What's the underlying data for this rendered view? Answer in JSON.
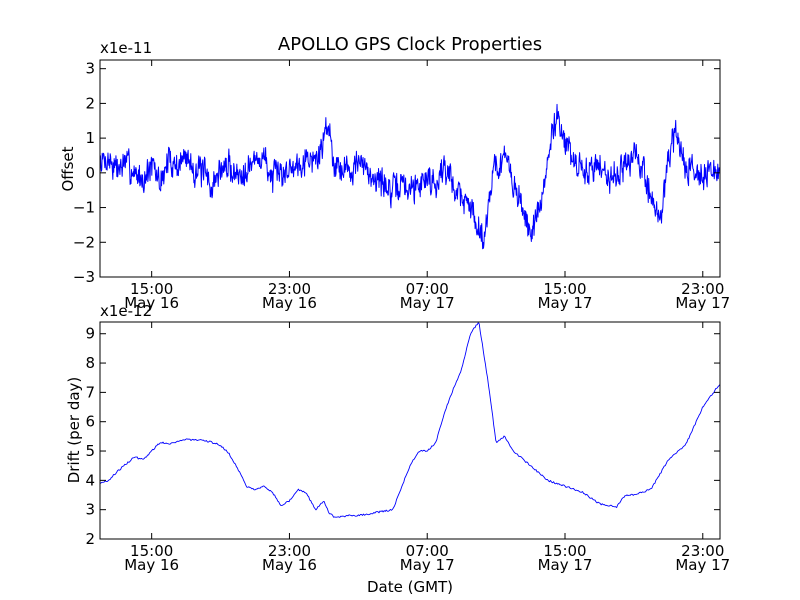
{
  "chart_data": [
    {
      "type": "line",
      "title": "APOLLO GPS Clock Properties",
      "xlabel": "",
      "ylabel": "Offset",
      "scale_label": "x1e-11",
      "xlim": [
        0,
        36
      ],
      "ylim": [
        -3,
        3.25
      ],
      "yticks": [
        -3,
        -2,
        -1,
        0,
        1,
        2,
        3
      ],
      "yticklabels": [
        "−3",
        "−2",
        "−1",
        "0",
        "1",
        "2",
        "3"
      ],
      "xticks": [
        3,
        11,
        19,
        27,
        35
      ],
      "xticklabels": [
        [
          "15:00",
          "May 16"
        ],
        [
          "23:00",
          "May 16"
        ],
        [
          "07:00",
          "May 17"
        ],
        [
          "15:00",
          "May 17"
        ],
        [
          "23:00",
          "May 17"
        ]
      ],
      "grid": false,
      "series": [
        {
          "color": "#0000ff",
          "noisy": true,
          "x": [
            0,
            0.5,
            1,
            1.5,
            2,
            2.5,
            3,
            3.5,
            4,
            4.5,
            5,
            5.5,
            6,
            6.5,
            7,
            7.5,
            8,
            8.5,
            9,
            9.5,
            10,
            10.5,
            11,
            11.5,
            12,
            12.5,
            13,
            13.2,
            13.4,
            13.6,
            14,
            14.5,
            15,
            15.5,
            16,
            16.5,
            17,
            17.5,
            18,
            18.5,
            19,
            19.5,
            20,
            20.5,
            21,
            21.5,
            22,
            22.3,
            22.5,
            22.8,
            23,
            23.5,
            24,
            24.5,
            25,
            25.5,
            26,
            26.5,
            27,
            27.5,
            28,
            28.5,
            29,
            29.5,
            30,
            30.5,
            31,
            31.5,
            32,
            32.5,
            33,
            33.5,
            34,
            34.5,
            35,
            35.5,
            36
          ],
          "y": [
            0.3,
            0.4,
            0.1,
            0.3,
            0.0,
            -0.2,
            0.2,
            -0.3,
            0.4,
            0.2,
            0.5,
            0.1,
            0.0,
            -0.4,
            0.1,
            0.2,
            -0.1,
            0.2,
            0.3,
            0.5,
            -0.2,
            0.0,
            0.1,
            0.3,
            0.5,
            0.3,
            0.9,
            1.6,
            0.9,
            0.3,
            0.2,
            0.1,
            0.3,
            0.0,
            -0.1,
            -0.3,
            -0.6,
            -0.3,
            -0.5,
            -0.3,
            -0.1,
            -0.3,
            0.2,
            -0.3,
            -0.7,
            -1.0,
            -1.5,
            -2.0,
            -1.0,
            0.0,
            0.2,
            0.4,
            -0.3,
            -1.0,
            -1.7,
            -1.2,
            0.3,
            1.8,
            0.9,
            0.3,
            0.0,
            0.1,
            0.3,
            -0.1,
            0.0,
            0.2,
            0.5,
            0.1,
            -0.6,
            -1.5,
            0.5,
            1.1,
            0.2,
            0.1,
            0.0,
            -0.1,
            0.2
          ]
        }
      ]
    },
    {
      "type": "line",
      "title": "",
      "xlabel": "Date (GMT)",
      "ylabel": "Drift (per day)",
      "scale_label": "x1e-12",
      "xlim": [
        0,
        36
      ],
      "ylim": [
        2,
        9.4
      ],
      "yticks": [
        2,
        3,
        4,
        5,
        6,
        7,
        8,
        9
      ],
      "yticklabels": [
        "2",
        "3",
        "4",
        "5",
        "6",
        "7",
        "8",
        "9"
      ],
      "xticks": [
        3,
        11,
        19,
        27,
        35
      ],
      "xticklabels": [
        [
          "15:00",
          "May 16"
        ],
        [
          "23:00",
          "May 16"
        ],
        [
          "07:00",
          "May 17"
        ],
        [
          "15:00",
          "May 17"
        ],
        [
          "23:00",
          "May 17"
        ]
      ],
      "grid": false,
      "series": [
        {
          "color": "#0000ff",
          "noisy": false,
          "x": [
            0,
            0.5,
            1,
            2,
            2.5,
            3,
            3.5,
            4,
            5,
            6,
            6.5,
            7,
            7.5,
            8,
            8.5,
            9,
            9.5,
            10,
            10.5,
            11,
            11.5,
            12,
            12.5,
            13,
            13.3,
            13.6,
            14,
            14.5,
            15,
            16,
            17,
            18,
            18.5,
            19,
            19.5,
            20,
            20.5,
            21,
            21.3,
            21.5,
            22,
            22.5,
            23,
            23.5,
            24,
            25,
            26,
            27,
            28,
            29,
            30,
            30.5,
            31,
            32,
            33,
            34,
            35,
            36
          ],
          "y": [
            3.9,
            4.0,
            4.3,
            4.8,
            4.7,
            5.0,
            5.3,
            5.25,
            5.4,
            5.35,
            5.3,
            5.2,
            4.9,
            4.4,
            3.8,
            3.7,
            3.8,
            3.6,
            3.15,
            3.3,
            3.7,
            3.55,
            3.0,
            3.3,
            2.9,
            2.75,
            2.75,
            2.8,
            2.8,
            2.9,
            3.0,
            4.5,
            5.0,
            5.0,
            5.3,
            6.3,
            7.1,
            7.8,
            8.5,
            9.0,
            9.4,
            7.5,
            5.3,
            5.5,
            5.0,
            4.5,
            4.0,
            3.8,
            3.6,
            3.2,
            3.1,
            3.5,
            3.5,
            3.7,
            4.7,
            5.2,
            6.5,
            7.3
          ]
        }
      ]
    }
  ]
}
